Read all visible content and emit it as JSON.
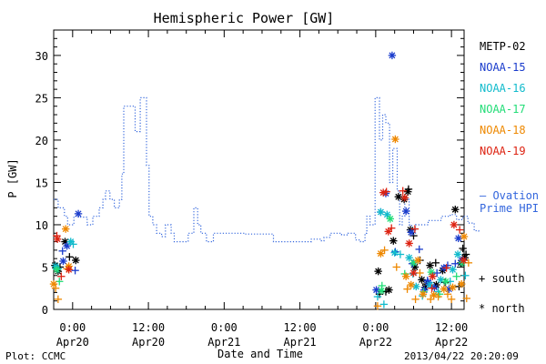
{
  "chart_data": {
    "type": "scatter",
    "title": "Hemispheric Power [GW]",
    "xlabel": "Date and Time",
    "ylabel": "P [GW]",
    "ylim": [
      0,
      33
    ],
    "xlim_hours": [
      -3,
      62
    ],
    "y_ticks": [
      0,
      5,
      10,
      15,
      20,
      25,
      30
    ],
    "x_ticks": [
      {
        "h": 0,
        "time": "0:00",
        "date": "Apr20"
      },
      {
        "h": 12,
        "time": "12:00",
        "date": "Apr20"
      },
      {
        "h": 24,
        "time": "0:00",
        "date": "Apr21"
      },
      {
        "h": 36,
        "time": "12:00",
        "date": "Apr21"
      },
      {
        "h": 48,
        "time": "0:00",
        "date": "Apr22"
      },
      {
        "h": 60,
        "time": "12:00",
        "date": "Apr22"
      }
    ],
    "ovation": {
      "name": "Ovation Prime HPI",
      "label_line1": "— Ovation",
      "label_line2": "Prime HPI",
      "color": "#3366dd",
      "points": [
        [
          -3,
          13
        ],
        [
          -2.3,
          13
        ],
        [
          -2.3,
          12
        ],
        [
          -1.3,
          12
        ],
        [
          -1.3,
          11
        ],
        [
          -0.8,
          11
        ],
        [
          -0.8,
          10
        ],
        [
          0.2,
          10
        ],
        [
          0.2,
          11
        ],
        [
          1.2,
          11
        ],
        [
          1.2,
          10.9
        ],
        [
          2.3,
          10.9
        ],
        [
          2.3,
          10
        ],
        [
          3.2,
          10
        ],
        [
          3.2,
          11
        ],
        [
          4.2,
          11
        ],
        [
          4.2,
          12
        ],
        [
          4.8,
          12
        ],
        [
          4.8,
          13
        ],
        [
          5.2,
          13
        ],
        [
          5.2,
          14
        ],
        [
          5.9,
          14
        ],
        [
          5.9,
          13
        ],
        [
          6.6,
          13
        ],
        [
          6.6,
          12
        ],
        [
          7.4,
          12
        ],
        [
          7.4,
          13
        ],
        [
          7.8,
          13
        ],
        [
          7.8,
          16
        ],
        [
          8.1,
          16
        ],
        [
          8.1,
          24
        ],
        [
          9.9,
          24
        ],
        [
          9.9,
          21
        ],
        [
          10.7,
          21
        ],
        [
          10.7,
          25
        ],
        [
          11.7,
          25
        ],
        [
          11.7,
          17
        ],
        [
          12.1,
          17
        ],
        [
          12.1,
          11
        ],
        [
          12.7,
          11
        ],
        [
          12.7,
          10
        ],
        [
          13.3,
          10
        ],
        [
          13.3,
          9
        ],
        [
          14.1,
          9
        ],
        [
          14.1,
          8.6
        ],
        [
          14.7,
          8.6
        ],
        [
          14.7,
          10
        ],
        [
          15.6,
          10
        ],
        [
          15.6,
          9
        ],
        [
          16.1,
          9
        ],
        [
          16.1,
          8
        ],
        [
          18.3,
          8
        ],
        [
          18.3,
          9
        ],
        [
          19.2,
          9
        ],
        [
          19.2,
          12
        ],
        [
          19.8,
          12
        ],
        [
          19.8,
          10
        ],
        [
          20.3,
          10
        ],
        [
          20.3,
          9
        ],
        [
          21.2,
          9
        ],
        [
          21.2,
          8
        ],
        [
          22.3,
          8
        ],
        [
          22.3,
          9
        ],
        [
          27.3,
          9
        ],
        [
          27.3,
          8.9
        ],
        [
          31.8,
          8.9
        ],
        [
          31.8,
          8
        ],
        [
          37.8,
          8
        ],
        [
          37.8,
          8.3
        ],
        [
          39.4,
          8.3
        ],
        [
          39.4,
          8.1
        ],
        [
          39.8,
          8.1
        ],
        [
          39.8,
          8.5
        ],
        [
          40.8,
          8.5
        ],
        [
          40.8,
          9
        ],
        [
          42.6,
          9
        ],
        [
          42.6,
          8.8
        ],
        [
          43.6,
          8.8
        ],
        [
          43.6,
          9
        ],
        [
          44.8,
          9
        ],
        [
          44.8,
          8.2
        ],
        [
          45.6,
          8.2
        ],
        [
          45.6,
          8
        ],
        [
          46.3,
          8
        ],
        [
          46.3,
          9
        ],
        [
          46.6,
          9
        ],
        [
          46.6,
          11
        ],
        [
          47.1,
          11
        ],
        [
          47.1,
          10
        ],
        [
          47.9,
          10
        ],
        [
          47.9,
          25
        ],
        [
          48.6,
          25
        ],
        [
          48.6,
          20
        ],
        [
          49.1,
          20
        ],
        [
          49.1,
          23
        ],
        [
          49.6,
          23
        ],
        [
          49.6,
          22
        ],
        [
          50.2,
          22
        ],
        [
          50.2,
          15
        ],
        [
          50.7,
          15
        ],
        [
          50.7,
          19
        ],
        [
          51.4,
          19
        ],
        [
          51.4,
          14
        ],
        [
          51.8,
          14
        ],
        [
          51.8,
          10
        ],
        [
          52.2,
          10
        ],
        [
          52.2,
          11
        ],
        [
          52.6,
          11
        ],
        [
          52.6,
          13
        ],
        [
          53.3,
          13
        ],
        [
          53.3,
          10
        ],
        [
          53.7,
          10
        ],
        [
          53.7,
          9
        ],
        [
          54.3,
          9
        ],
        [
          54.3,
          10
        ],
        [
          56.3,
          10
        ],
        [
          56.3,
          10.5
        ],
        [
          58.4,
          10.5
        ],
        [
          58.4,
          11
        ],
        [
          59.8,
          11
        ],
        [
          59.8,
          11.2
        ],
        [
          60.8,
          11.2
        ],
        [
          60.8,
          10.6
        ],
        [
          61.8,
          10.6
        ],
        [
          61.8,
          11
        ],
        [
          62.6,
          11
        ],
        [
          62.6,
          10.2
        ],
        [
          63.6,
          10.2
        ],
        [
          63.6,
          9.3
        ],
        [
          64.3,
          9.3
        ],
        [
          64.3,
          9
        ]
      ]
    },
    "series": [
      {
        "name": "METP-02",
        "color": "#000000",
        "points_north": [
          [
            -2.3,
            4.5
          ],
          [
            -2.8,
            5.2
          ],
          [
            -1.2,
            8.0
          ],
          [
            0.5,
            5.8
          ],
          [
            48.4,
            4.5
          ],
          [
            50.1,
            2.3
          ],
          [
            50.8,
            8.1
          ],
          [
            51.6,
            13.3
          ],
          [
            52.5,
            13.0
          ],
          [
            53.1,
            13.9
          ],
          [
            53.5,
            9.4
          ],
          [
            54.2,
            5.0
          ],
          [
            55.3,
            3.5
          ],
          [
            55.8,
            2.6
          ],
          [
            56.6,
            5.2
          ],
          [
            57.6,
            2.9
          ],
          [
            58.6,
            4.6
          ],
          [
            60.6,
            11.8
          ],
          [
            61.5,
            5.5
          ],
          [
            62.1,
            6.1
          ]
        ],
        "points_south": [
          [
            -2.0,
            5.0
          ],
          [
            -0.5,
            6.2
          ],
          [
            48.6,
            1.8
          ],
          [
            49.6,
            2.1
          ],
          [
            53.2,
            14.2
          ],
          [
            54.0,
            8.7
          ],
          [
            55.0,
            5.8
          ],
          [
            56.0,
            3.0
          ],
          [
            57.5,
            5.5
          ],
          [
            59.0,
            3.2
          ],
          [
            61.2,
            2.7
          ],
          [
            61.8,
            7.2
          ],
          [
            62.3,
            6.5
          ]
        ]
      },
      {
        "name": "NOAA-15",
        "color": "#1a3ccc",
        "points_north": [
          [
            -1.5,
            5.7
          ],
          [
            -0.9,
            7.5
          ],
          [
            0.9,
            11.3
          ],
          [
            48.1,
            2.3
          ],
          [
            49.6,
            13.7
          ],
          [
            50.6,
            30.0
          ],
          [
            52.8,
            11.6
          ],
          [
            53.6,
            9.1
          ],
          [
            55.7,
            2.3
          ],
          [
            56.3,
            3.2
          ],
          [
            57.3,
            2.6
          ],
          [
            58.8,
            4.9
          ],
          [
            59.6,
            2.4
          ],
          [
            61.1,
            8.4
          ],
          [
            61.6,
            5.8
          ]
        ],
        "points_south": [
          [
            -1.6,
            6.9
          ],
          [
            0.4,
            4.6
          ],
          [
            48.8,
            11.5
          ],
          [
            51.1,
            6.8
          ],
          [
            53.8,
            5.4
          ],
          [
            54.9,
            7.1
          ],
          [
            56.2,
            3.4
          ],
          [
            57.7,
            4.3
          ],
          [
            59.4,
            5.2
          ],
          [
            60.6,
            5.4
          ]
        ]
      },
      {
        "name": "NOAA-16",
        "color": "#11bbcc",
        "points_north": [
          [
            -2.7,
            5.1
          ],
          [
            -0.3,
            8.0
          ],
          [
            48.8,
            11.5
          ],
          [
            49.8,
            11.2
          ],
          [
            51.0,
            6.7
          ],
          [
            53.3,
            6.1
          ],
          [
            54.4,
            2.7
          ],
          [
            56.6,
            2.9
          ],
          [
            58.3,
            3.5
          ],
          [
            60.2,
            4.7
          ],
          [
            61.0,
            6.5
          ]
        ],
        "points_south": [
          [
            -2.3,
            4.8
          ],
          [
            0.1,
            7.7
          ],
          [
            48.3,
            1.5
          ],
          [
            49.3,
            0.6
          ],
          [
            51.9,
            6.5
          ],
          [
            53.9,
            4.2
          ],
          [
            55.4,
            1.6
          ],
          [
            57.9,
            2.1
          ],
          [
            59.8,
            3.3
          ],
          [
            62.2,
            4.0
          ]
        ]
      },
      {
        "name": "NOAA-17",
        "color": "#22dd77",
        "points_north": [
          [
            -2.5,
            4.7
          ],
          [
            48.9,
            2.2
          ],
          [
            50.3,
            10.7
          ],
          [
            54.0,
            5.5
          ],
          [
            56.8,
            4.4
          ],
          [
            59.1,
            3.3
          ],
          [
            61.7,
            5.5
          ]
        ],
        "points_south": [
          [
            -2.1,
            3.3
          ],
          [
            49.0,
            2.8
          ],
          [
            52.6,
            4.2
          ],
          [
            55.6,
            2.1
          ],
          [
            58.1,
            1.8
          ],
          [
            60.8,
            3.9
          ]
        ]
      },
      {
        "name": "NOAA-18",
        "color": "#ee8800",
        "points_north": [
          [
            -3.0,
            3.0
          ],
          [
            -1.1,
            9.5
          ],
          [
            -0.6,
            5.1
          ],
          [
            48.8,
            6.6
          ],
          [
            51.1,
            20.1
          ],
          [
            52.8,
            3.9
          ],
          [
            53.6,
            2.9
          ],
          [
            54.7,
            5.8
          ],
          [
            55.5,
            1.8
          ],
          [
            57.2,
            1.7
          ],
          [
            58.8,
            2.4
          ],
          [
            60.2,
            2.6
          ],
          [
            61.6,
            3.0
          ],
          [
            62.0,
            8.6
          ]
        ],
        "points_south": [
          [
            -2.7,
            2.5
          ],
          [
            -2.3,
            1.2
          ],
          [
            -0.9,
            4.8
          ],
          [
            48.3,
            0.4
          ],
          [
            49.4,
            7.0
          ],
          [
            51.3,
            5.0
          ],
          [
            53.0,
            2.4
          ],
          [
            54.3,
            1.2
          ],
          [
            55.0,
            4.3
          ],
          [
            56.7,
            1.2
          ],
          [
            57.9,
            1.5
          ],
          [
            59.4,
            1.8
          ],
          [
            60.0,
            1.2
          ],
          [
            62.4,
            1.3
          ],
          [
            62.7,
            5.5
          ]
        ]
      },
      {
        "name": "NOAA-19",
        "color": "#dd2211",
        "points_north": [
          [
            -2.4,
            8.3
          ],
          [
            -0.6,
            4.7
          ],
          [
            49.2,
            13.8
          ],
          [
            50.0,
            9.2
          ],
          [
            52.6,
            13.2
          ],
          [
            53.3,
            7.8
          ],
          [
            54.0,
            4.3
          ],
          [
            57.0,
            3.9
          ],
          [
            60.4,
            10.0
          ],
          [
            61.9,
            5.8
          ]
        ],
        "points_south": [
          [
            -2.5,
            8.7
          ],
          [
            -1.8,
            3.9
          ],
          [
            49.7,
            13.9
          ],
          [
            50.5,
            9.6
          ],
          [
            52.3,
            14.0
          ],
          [
            54.2,
            9.5
          ],
          [
            56.9,
            2.5
          ],
          [
            59.2,
            4.9
          ],
          [
            61.3,
            9.4
          ]
        ]
      }
    ],
    "legend_placement": "right",
    "marker_legend": {
      "south": "+ south",
      "north": "* north"
    },
    "grid": false
  },
  "footer": {
    "plot_credit": "Plot: CCMC",
    "timestamp": "2013/04/22 20:20:09"
  }
}
